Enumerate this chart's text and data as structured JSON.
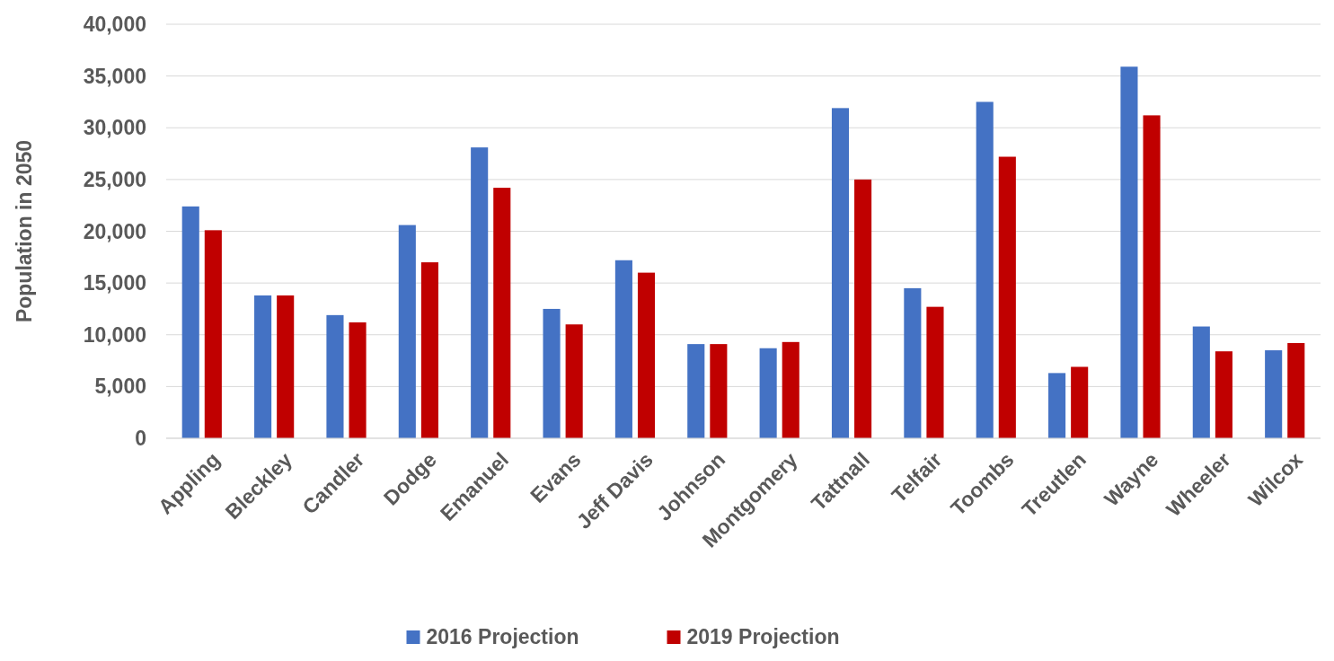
{
  "chart_data": {
    "type": "bar",
    "ylabel": "Population in 2050",
    "categories": [
      "Appling",
      "Bleckley",
      "Candler",
      "Dodge",
      "Emanuel",
      "Evans",
      "Jeff Davis",
      "Johnson",
      "Montgomery",
      "Tattnall",
      "Telfair",
      "Toombs",
      "Treutlen",
      "Wayne",
      "Wheeler",
      "Wilcox"
    ],
    "series": [
      {
        "name": "2016 Projection",
        "color": "#4472c4",
        "values": [
          22400,
          13800,
          11900,
          20600,
          28100,
          12500,
          17200,
          9100,
          8700,
          31900,
          14500,
          32500,
          6300,
          35900,
          10800,
          8500
        ]
      },
      {
        "name": "2019 Projection",
        "color": "#c00000",
        "values": [
          20100,
          13800,
          11200,
          17000,
          24200,
          11000,
          16000,
          9100,
          9300,
          25000,
          12700,
          27200,
          6900,
          31200,
          8400,
          9200
        ]
      }
    ],
    "ylim": [
      0,
      40000
    ],
    "yticks": [
      {
        "value": 0,
        "label": "0"
      },
      {
        "value": 5000,
        "label": "5,000"
      },
      {
        "value": 10000,
        "label": "10,000"
      },
      {
        "value": 15000,
        "label": "15,000"
      },
      {
        "value": 20000,
        "label": "20,000"
      },
      {
        "value": 25000,
        "label": "25,000"
      },
      {
        "value": 30000,
        "label": "30,000"
      },
      {
        "value": 35000,
        "label": "35,000"
      },
      {
        "value": 40000,
        "label": "40,000"
      }
    ],
    "grid": "y",
    "legend": "bottom"
  }
}
